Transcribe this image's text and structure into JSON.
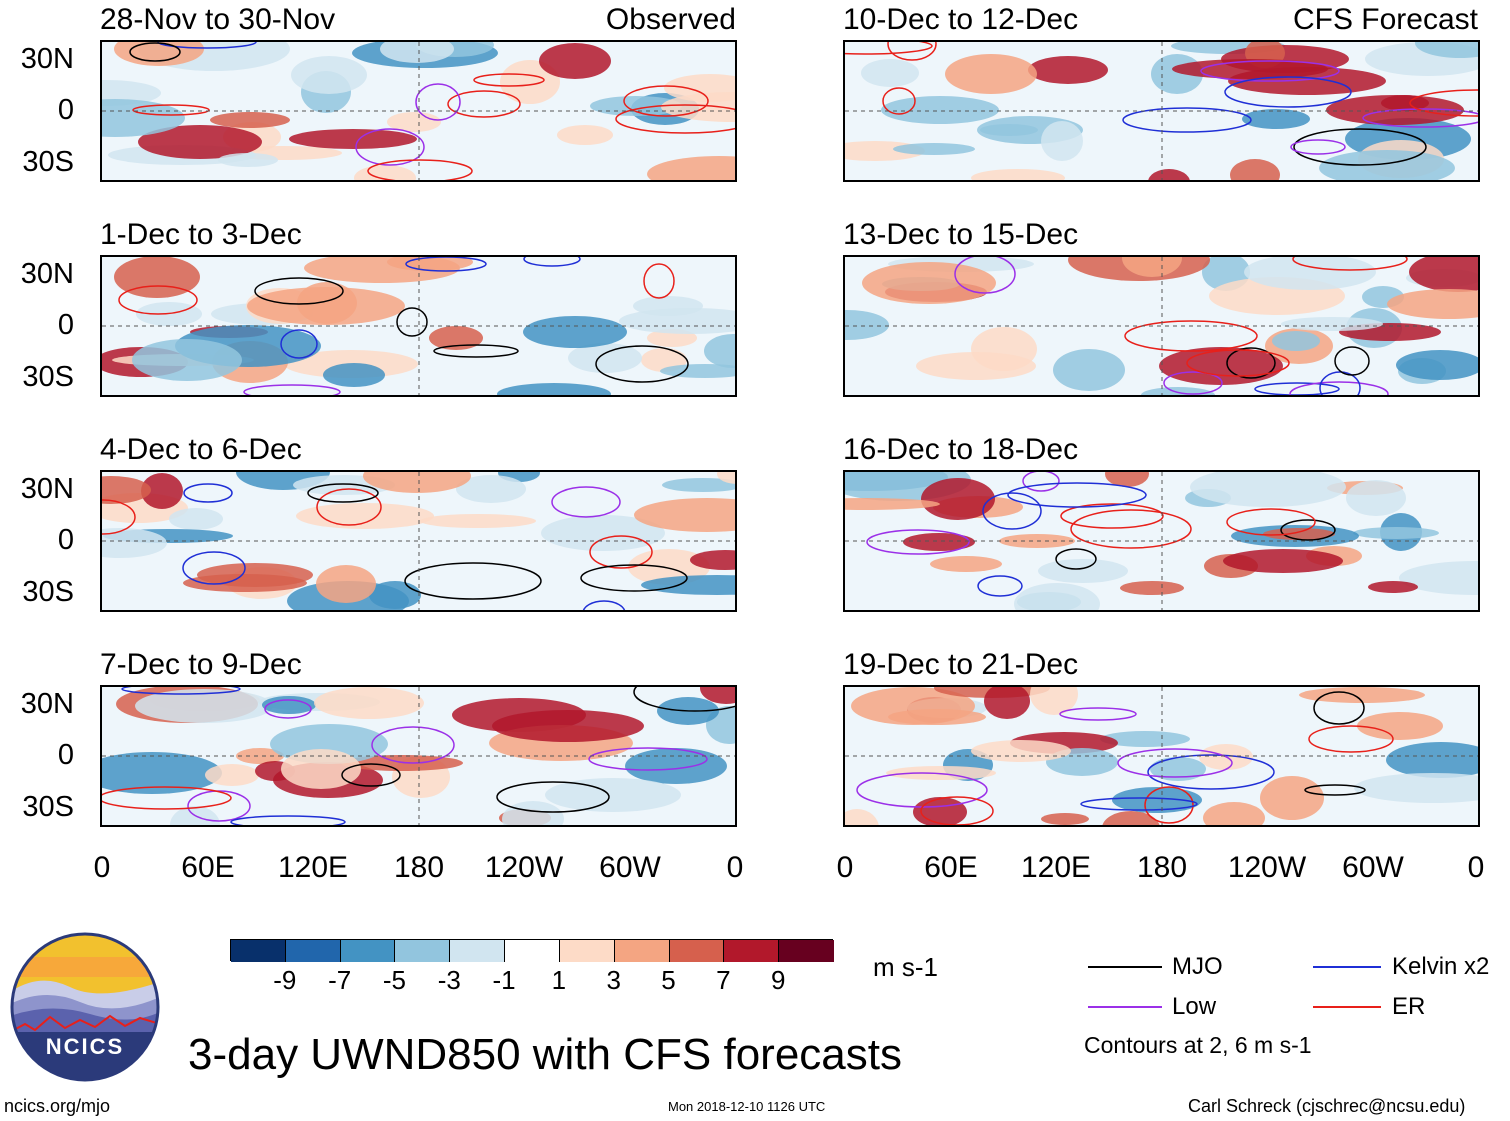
{
  "panels_left": [
    {
      "title": "28-Nov to 30-Nov",
      "tag": "Observed"
    },
    {
      "title": "1-Dec to 3-Dec",
      "tag": ""
    },
    {
      "title": "4-Dec to 6-Dec",
      "tag": ""
    },
    {
      "title": "7-Dec to 9-Dec",
      "tag": ""
    }
  ],
  "panels_right": [
    {
      "title": "10-Dec to 12-Dec",
      "tag": "CFS Forecast"
    },
    {
      "title": "13-Dec to 15-Dec",
      "tag": ""
    },
    {
      "title": "16-Dec to 18-Dec",
      "tag": ""
    },
    {
      "title": "19-Dec to 21-Dec",
      "tag": ""
    }
  ],
  "lat_labels": [
    "30N",
    "0",
    "30S"
  ],
  "lon_labels": [
    "0",
    "60E",
    "120E",
    "180",
    "120W",
    "60W",
    "0"
  ],
  "colorbar": {
    "labels": [
      "-9",
      "-7",
      "-5",
      "-3",
      "-1",
      "1",
      "3",
      "5",
      "7",
      "9"
    ],
    "colors": [
      "#08306b",
      "#2166ac",
      "#4393c3",
      "#92c5de",
      "#d1e5f0",
      "#ffffff",
      "#fddbc7",
      "#f4a582",
      "#d6604d",
      "#b2182b",
      "#67001f"
    ],
    "units": "m s-1"
  },
  "legend": {
    "items": [
      {
        "label": "MJO",
        "color": "#000000"
      },
      {
        "label": "Kelvin x2",
        "color": "#1f2fd6"
      },
      {
        "label": "Low",
        "color": "#9b30e8"
      },
      {
        "label": "ER",
        "color": "#e8201a"
      }
    ],
    "note": "Contours at 2, 6 m s-1"
  },
  "logo": {
    "text": "NCICS"
  },
  "main_title": "3-day UWND850 with CFS forecasts",
  "footer": {
    "url": "ncics.org/mjo",
    "timestamp": "Mon 2018-12-10 1126 UTC",
    "credit": "Carl Schreck (cjschrec@ncsu.edu)"
  }
}
